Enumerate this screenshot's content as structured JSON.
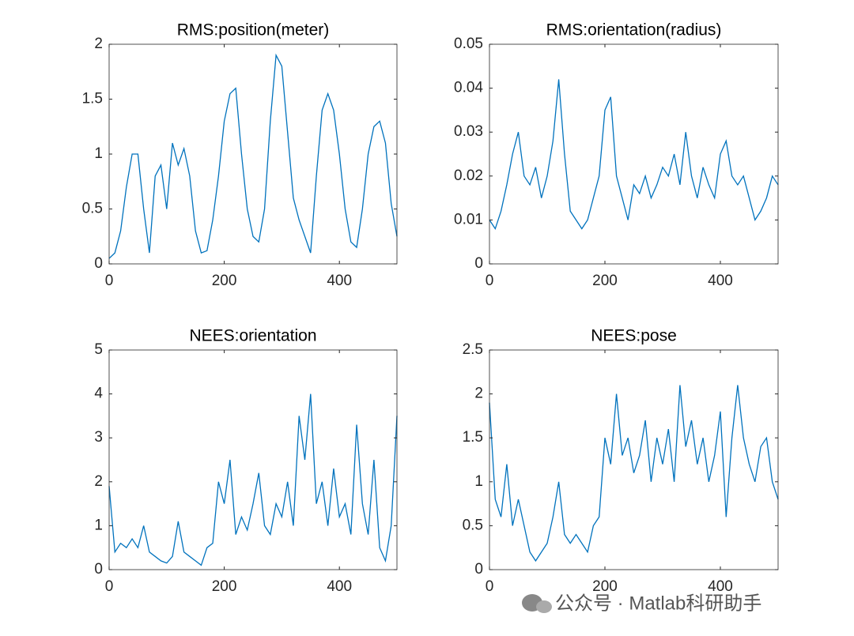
{
  "chart_data": [
    {
      "type": "line",
      "title": "RMS:position(meter)",
      "color": "#0072bd",
      "x": [
        0,
        10,
        20,
        30,
        40,
        50,
        60,
        70,
        80,
        90,
        100,
        110,
        120,
        130,
        140,
        150,
        160,
        170,
        180,
        190,
        200,
        210,
        220,
        230,
        240,
        250,
        260,
        270,
        280,
        290,
        300,
        310,
        320,
        330,
        340,
        350,
        360,
        370,
        380,
        390,
        400,
        410,
        420,
        430,
        440,
        450,
        460,
        470,
        480,
        490,
        500
      ],
      "values": [
        0.05,
        0.1,
        0.3,
        0.7,
        1.0,
        1.0,
        0.5,
        0.1,
        0.8,
        0.9,
        0.5,
        1.1,
        0.9,
        1.05,
        0.8,
        0.3,
        0.1,
        0.12,
        0.4,
        0.8,
        1.3,
        1.55,
        1.6,
        1.0,
        0.5,
        0.25,
        0.2,
        0.5,
        1.3,
        1.9,
        1.8,
        1.2,
        0.6,
        0.4,
        0.25,
        0.1,
        0.8,
        1.4,
        1.55,
        1.4,
        1.0,
        0.5,
        0.2,
        0.15,
        0.5,
        1.0,
        1.25,
        1.3,
        1.1,
        0.55,
        0.25
      ],
      "xlim": [
        0,
        500
      ],
      "xticks": [
        0,
        200,
        400
      ],
      "ylim": [
        0,
        2
      ],
      "yticks": [
        0,
        0.5,
        1,
        1.5,
        2
      ]
    },
    {
      "type": "line",
      "title": "RMS:orientation(radius)",
      "color": "#0072bd",
      "x": [
        0,
        10,
        20,
        30,
        40,
        50,
        60,
        70,
        80,
        90,
        100,
        110,
        120,
        130,
        140,
        150,
        160,
        170,
        180,
        190,
        200,
        210,
        220,
        230,
        240,
        250,
        260,
        270,
        280,
        290,
        300,
        310,
        320,
        330,
        340,
        350,
        360,
        370,
        380,
        390,
        400,
        410,
        420,
        430,
        440,
        450,
        460,
        470,
        480,
        490,
        500
      ],
      "values": [
        0.01,
        0.008,
        0.012,
        0.018,
        0.025,
        0.03,
        0.02,
        0.018,
        0.022,
        0.015,
        0.02,
        0.028,
        0.042,
        0.025,
        0.012,
        0.01,
        0.008,
        0.01,
        0.015,
        0.02,
        0.035,
        0.038,
        0.02,
        0.015,
        0.01,
        0.018,
        0.016,
        0.02,
        0.015,
        0.018,
        0.022,
        0.02,
        0.025,
        0.018,
        0.03,
        0.02,
        0.015,
        0.022,
        0.018,
        0.015,
        0.025,
        0.028,
        0.02,
        0.018,
        0.02,
        0.015,
        0.01,
        0.012,
        0.015,
        0.02,
        0.018
      ],
      "xlim": [
        0,
        500
      ],
      "xticks": [
        0,
        200,
        400
      ],
      "ylim": [
        0,
        0.05
      ],
      "yticks": [
        0,
        0.01,
        0.02,
        0.03,
        0.04,
        0.05
      ]
    },
    {
      "type": "line",
      "title": "NEES:orientation",
      "color": "#0072bd",
      "x": [
        0,
        10,
        20,
        30,
        40,
        50,
        60,
        70,
        80,
        90,
        100,
        110,
        120,
        130,
        140,
        150,
        160,
        170,
        180,
        190,
        200,
        210,
        220,
        230,
        240,
        250,
        260,
        270,
        280,
        290,
        300,
        310,
        320,
        330,
        340,
        350,
        360,
        370,
        380,
        390,
        400,
        410,
        420,
        430,
        440,
        450,
        460,
        470,
        480,
        490,
        500
      ],
      "values": [
        1.9,
        0.4,
        0.6,
        0.5,
        0.7,
        0.5,
        1.0,
        0.4,
        0.3,
        0.2,
        0.15,
        0.3,
        1.1,
        0.4,
        0.3,
        0.2,
        0.1,
        0.5,
        0.6,
        2.0,
        1.5,
        2.5,
        0.8,
        1.2,
        0.9,
        1.5,
        2.2,
        1.0,
        0.8,
        1.5,
        1.2,
        2.0,
        1.0,
        3.5,
        2.5,
        4.0,
        1.5,
        2.0,
        1.0,
        2.3,
        1.2,
        1.5,
        0.8,
        3.3,
        1.5,
        0.8,
        2.5,
        0.5,
        0.2,
        1.0,
        3.5
      ],
      "xlim": [
        0,
        500
      ],
      "xticks": [
        0,
        200,
        400
      ],
      "ylim": [
        0,
        5
      ],
      "yticks": [
        0,
        1,
        2,
        3,
        4,
        5
      ]
    },
    {
      "type": "line",
      "title": "NEES:pose",
      "color": "#0072bd",
      "x": [
        0,
        10,
        20,
        30,
        40,
        50,
        60,
        70,
        80,
        90,
        100,
        110,
        120,
        130,
        140,
        150,
        160,
        170,
        180,
        190,
        200,
        210,
        220,
        230,
        240,
        250,
        260,
        270,
        280,
        290,
        300,
        310,
        320,
        330,
        340,
        350,
        360,
        370,
        380,
        390,
        400,
        410,
        420,
        430,
        440,
        450,
        460,
        470,
        480,
        490,
        500
      ],
      "values": [
        1.9,
        0.8,
        0.6,
        1.2,
        0.5,
        0.8,
        0.5,
        0.2,
        0.1,
        0.2,
        0.3,
        0.6,
        1.0,
        0.4,
        0.3,
        0.4,
        0.3,
        0.2,
        0.5,
        0.6,
        1.5,
        1.2,
        2.0,
        1.3,
        1.5,
        1.1,
        1.3,
        1.7,
        1.0,
        1.5,
        1.2,
        1.6,
        1.0,
        2.1,
        1.4,
        1.7,
        1.2,
        1.5,
        1.0,
        1.3,
        1.8,
        0.6,
        1.5,
        2.1,
        1.5,
        1.2,
        1.0,
        1.4,
        1.5,
        1.0,
        0.8
      ],
      "xlim": [
        0,
        500
      ],
      "xticks": [
        0,
        200,
        400
      ],
      "ylim": [
        0,
        2.5
      ],
      "yticks": [
        0,
        0.5,
        1,
        1.5,
        2,
        2.5
      ]
    }
  ],
  "watermark": "公众号 · Matlab科研助手"
}
